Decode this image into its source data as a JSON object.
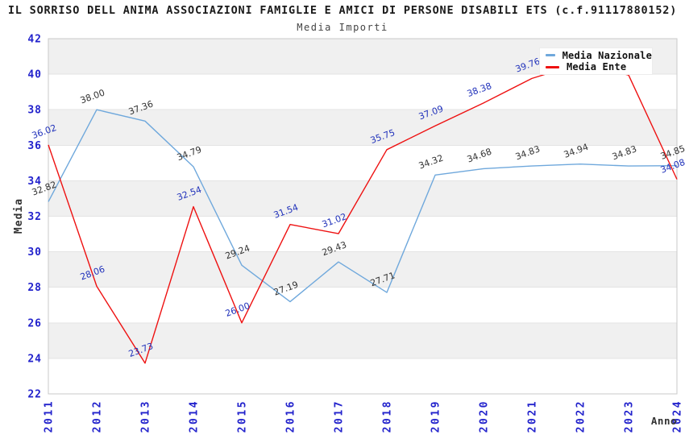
{
  "header": {
    "title": "IL SORRISO DELL ANIMA ASSOCIAZIONI FAMIGLIE E AMICI DI PERSONE DISABILI ETS (c.f.91117880152)"
  },
  "chart_data": {
    "type": "line",
    "title": "Media Importi",
    "xlabel": "Anno",
    "ylabel": "Media",
    "categories": [
      "2011",
      "2012",
      "2013",
      "2014",
      "2015",
      "2016",
      "2017",
      "2018",
      "2019",
      "2020",
      "2021",
      "2022",
      "2023",
      "2024"
    ],
    "ylim": [
      22,
      42
    ],
    "y_ticks": [
      42,
      40,
      38,
      36,
      34,
      32,
      30,
      28,
      26,
      24,
      22
    ],
    "grid": "alternating-horizontal-bands",
    "band_color": "#F0F0F0",
    "gridline_color": "#E3E3E3",
    "plot_border_color": "#C9C9C9",
    "tick_label_color": "#2222CC",
    "axis_title_color": "#333333",
    "legend_position": "top-right",
    "point_label_rotation_deg": -20,
    "series": [
      {
        "name": "Media Nazionale",
        "color": "#6FA8DC",
        "label_color": "#333333",
        "values": [
          32.82,
          38.0,
          37.36,
          34.79,
          29.24,
          27.19,
          29.43,
          27.71,
          34.32,
          34.68,
          34.83,
          34.94,
          34.83,
          34.85
        ],
        "point_labels": [
          "32.82",
          "38.00",
          "37.36",
          "34.79",
          "29.24",
          "27.19",
          "29.43",
          "27.71",
          "34.32",
          "34.68",
          "34.83",
          "34.94",
          "34.83",
          "34.85"
        ]
      },
      {
        "name": "Media Ente",
        "color": "#EE1111",
        "label_color": "#2233BB",
        "values": [
          36.02,
          28.06,
          23.73,
          32.54,
          26.0,
          31.54,
          31.02,
          35.75,
          37.09,
          38.38,
          39.76,
          40.6,
          39.95,
          34.08
        ],
        "point_labels": [
          "36.02",
          "28.06",
          "23.73",
          "32.54",
          "26.00",
          "31.54",
          "31.02",
          "35.75",
          "37.09",
          "38.38",
          "39.76",
          null,
          null,
          "34.08"
        ],
        "note": "2022 and 2023 points are hidden behind the legend box; values estimated from visible line segments"
      }
    ]
  }
}
